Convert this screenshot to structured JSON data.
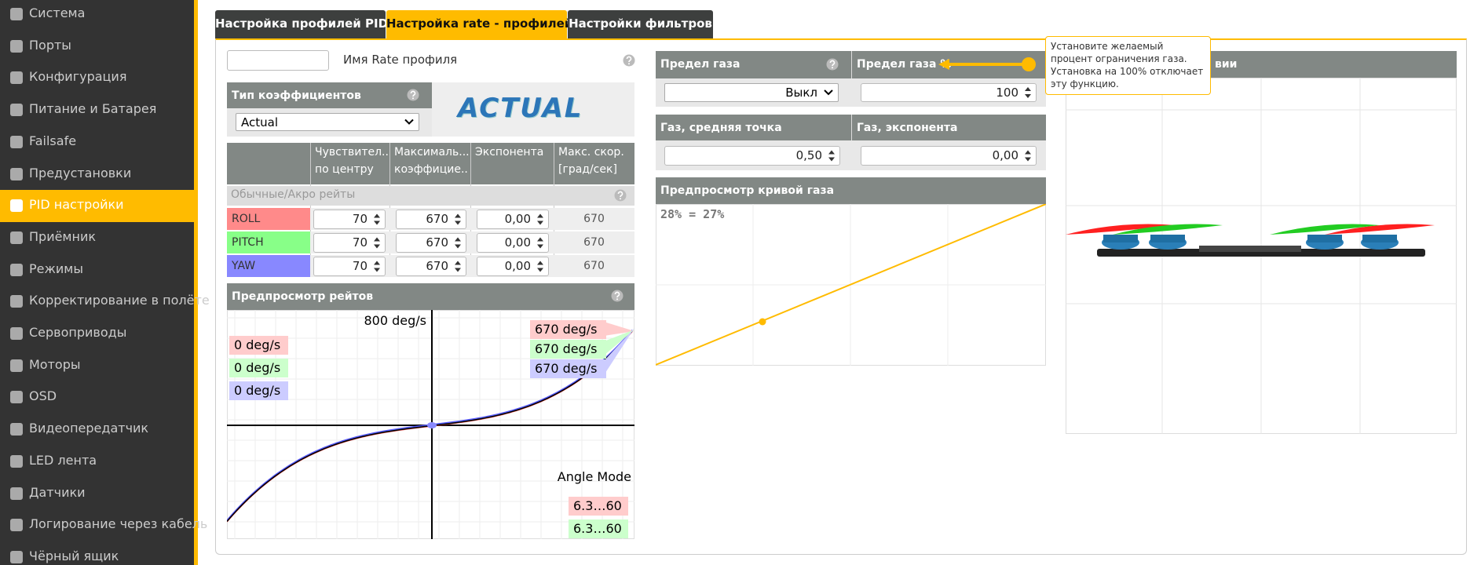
{
  "sidebar": {
    "items": [
      "Система",
      "Порты",
      "Конфигурация",
      "Питание и Батарея",
      "Failsafe",
      "Предустановки",
      "PID настройки",
      "Приёмник",
      "Режимы",
      "Корректирование в полёте",
      "Сервоприводы",
      "Моторы",
      "OSD",
      "Видеопередатчик",
      "LED лента",
      "Датчики",
      "Логирование через кабель",
      "Чёрный ящик"
    ]
  },
  "tabs": [
    "Настройка профилей PID",
    "Настройка rate - профилей",
    "Настройки фильтров"
  ],
  "profile": {
    "name_label": "Имя Rate профиля"
  },
  "rates_type": {
    "label": "Тип коэффициентов",
    "selected": "Actual",
    "logo": "ACTUAL"
  },
  "rates_table": {
    "headers": [
      [
        "Чувствител...",
        "по центру"
      ],
      [
        "Максималь...",
        "коэффицие..."
      ],
      [
        "Экспонента"
      ],
      [
        "Макс. скор.",
        "[град/сек]"
      ]
    ],
    "group": "Обычные/Акро рейты",
    "rows": [
      [
        "ROLL",
        70,
        670,
        "0,00",
        670
      ],
      [
        "PITCH",
        70,
        670,
        "0,00",
        670
      ],
      [
        "YAW",
        70,
        670,
        "0,00",
        670
      ]
    ]
  },
  "rates_preview": {
    "title": "Предпросмотр рейтов",
    "max_label": "800 deg/s",
    "current": [
      "0 deg/s",
      "0 deg/s",
      "0 deg/s"
    ],
    "max": [
      "670 deg/s",
      "670 deg/s",
      "670 deg/s"
    ],
    "angle_mode": "Angle Mode",
    "angle": [
      "6.3…60",
      "6.3…60"
    ]
  },
  "throttle_limit": {
    "type_label": "Предел газа",
    "type_value": "Выкл",
    "percent_label": "Предел газа %",
    "percent_value": 100
  },
  "throttle": {
    "mid_label": "Газ, средняя точка",
    "mid_value": "0,50",
    "expo_label": "Газ, экспонента",
    "expo_value": "0,00"
  },
  "throttle_preview": {
    "title": "Предпросмотр кривой газа",
    "readout": "28% = 27%"
  },
  "model_preview": {
    "title": "вии"
  },
  "tooltip": "Установите желаемый процент ограничения газа. Установка на 100% отключает эту функцию."
}
